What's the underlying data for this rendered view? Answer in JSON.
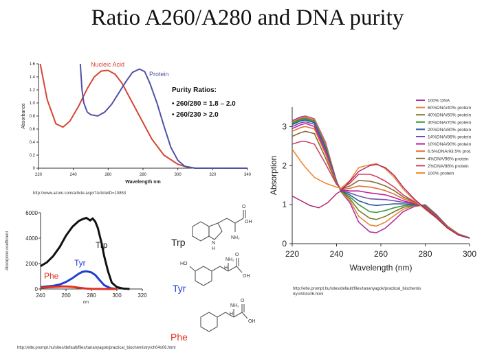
{
  "page": {
    "title": "Ratio A260/A280 and DNA purity"
  },
  "colors": {
    "nucleic": "#d64532",
    "protein": "#5151a8",
    "trp": "#111111",
    "tyr": "#1f3fd0",
    "phe": "#e03020",
    "purity_text": "#111111"
  },
  "chart_data": [
    {
      "id": "absorbance_spectra",
      "type": "line",
      "title": "",
      "xlabel": "Wavelength nm",
      "ylabel": "Absorbance",
      "xlim": [
        220,
        340
      ],
      "ylim": [
        0,
        1.6
      ],
      "xticks": [
        "220",
        "240",
        "260",
        "280",
        "300",
        "320",
        "340"
      ],
      "yticks": [
        "0",
        "0.2",
        "0.4",
        "0.6",
        "0.8",
        "1.0",
        "1.2",
        "1.4",
        "1.6"
      ],
      "series": [
        {
          "name": "Nucleic Acid",
          "color": "#d64532",
          "x": [
            221,
            225,
            230,
            234,
            238,
            243,
            248,
            252,
            256,
            260,
            264,
            268,
            272,
            278,
            285,
            292,
            300,
            305,
            310,
            340
          ],
          "y": [
            1.6,
            1.05,
            0.68,
            0.63,
            0.72,
            0.95,
            1.22,
            1.4,
            1.49,
            1.5,
            1.44,
            1.3,
            1.1,
            0.8,
            0.45,
            0.2,
            0.06,
            0.02,
            0,
            0
          ]
        },
        {
          "name": "Protein",
          "color": "#5151a8",
          "x": [
            244,
            245,
            246,
            248,
            250,
            254,
            258,
            262,
            266,
            270,
            274,
            278,
            281,
            284,
            288,
            292,
            296,
            300,
            304,
            310,
            340
          ],
          "y": [
            1.6,
            1.2,
            1.0,
            0.86,
            0.82,
            0.8,
            0.86,
            0.98,
            1.15,
            1.32,
            1.47,
            1.52,
            1.48,
            1.3,
            1.0,
            0.65,
            0.32,
            0.12,
            0.03,
            0,
            0
          ]
        }
      ],
      "annotations": {
        "heading": "Purity Ratios:",
        "lines": [
          "• 260/280 = 1.8 – 2.0",
          "• 260/230 > 2.0"
        ]
      },
      "source": "http://www.azom.com/article.aspx?ArticleID=10853"
    },
    {
      "id": "amino_acid_absorption",
      "type": "line",
      "title": "",
      "xlabel": "nm",
      "ylabel": "Absorption coefficient",
      "xlim": [
        240,
        320
      ],
      "ylim": [
        0,
        6000
      ],
      "xticks": [
        "240",
        "260",
        "280",
        "300",
        "320"
      ],
      "yticks": [
        "0",
        "2000",
        "4000",
        "6000"
      ],
      "series": [
        {
          "name": "Trp",
          "color": "#111111",
          "x": [
            240,
            245,
            250,
            255,
            260,
            265,
            270,
            273,
            276,
            279,
            281,
            283,
            285,
            288,
            290,
            293,
            296,
            300,
            305,
            310
          ],
          "y": [
            1800,
            2100,
            2600,
            3300,
            4200,
            4900,
            5350,
            5500,
            5600,
            5400,
            5550,
            5300,
            4800,
            3600,
            2600,
            1400,
            500,
            150,
            30,
            0
          ]
        },
        {
          "name": "Tyr",
          "color": "#1f3fd0",
          "x": [
            240,
            250,
            255,
            260,
            265,
            270,
            273,
            276,
            280,
            283,
            286,
            290,
            295,
            300
          ],
          "y": [
            150,
            250,
            350,
            550,
            850,
            1200,
            1350,
            1400,
            1300,
            1100,
            750,
            300,
            60,
            0
          ]
        },
        {
          "name": "Phe",
          "color": "#e03020",
          "x": [
            240,
            245,
            250,
            255,
            258,
            262,
            265,
            270,
            275,
            280,
            290,
            300
          ],
          "y": [
            100,
            130,
            160,
            190,
            200,
            190,
            170,
            100,
            40,
            10,
            0,
            0
          ]
        }
      ],
      "source": "http://elte.prompt.hu/sites/default/files/tananyagok/practical_biochemistry/ch04s06.html"
    },
    {
      "id": "dna_protein_mixtures",
      "type": "line",
      "title": "",
      "xlabel": "Wavelength (nm)",
      "ylabel": "Absorption",
      "xlim": [
        220,
        300
      ],
      "ylim": [
        0,
        3.5
      ],
      "xticks": [
        "220",
        "240",
        "260",
        "280",
        "300"
      ],
      "yticks": [
        "0",
        "1",
        "2",
        "3"
      ],
      "x": [
        220,
        224,
        226,
        230,
        235,
        240,
        242,
        246,
        250,
        255,
        258,
        262,
        266,
        270,
        275,
        280,
        285,
        290,
        295,
        300
      ],
      "series": [
        {
          "name": "100% DNA",
          "color": "#b0309f",
          "y": [
            3.15,
            3.25,
            3.27,
            3.2,
            2.6,
            1.6,
            1.33,
            1.05,
            0.55,
            0.3,
            0.28,
            0.4,
            0.6,
            0.82,
            0.95,
            1.0,
            0.75,
            0.45,
            0.25,
            0.15
          ]
        },
        {
          "name": "60%DNA/40% protein",
          "color": "#e08a3a",
          "y": [
            3.12,
            3.22,
            3.25,
            3.18,
            2.56,
            1.6,
            1.33,
            1.1,
            0.7,
            0.48,
            0.45,
            0.55,
            0.72,
            0.88,
            0.97,
            0.99,
            0.75,
            0.45,
            0.25,
            0.15
          ]
        },
        {
          "name": "40%DNA/60% protein",
          "color": "#7a7a2a",
          "y": [
            3.1,
            3.2,
            3.22,
            3.15,
            2.52,
            1.6,
            1.34,
            1.15,
            0.85,
            0.65,
            0.62,
            0.7,
            0.82,
            0.93,
            0.98,
            0.98,
            0.74,
            0.44,
            0.24,
            0.15
          ]
        },
        {
          "name": "30%DNA/70% protein",
          "color": "#3a9a3a",
          "y": [
            3.08,
            3.18,
            3.2,
            3.12,
            2.48,
            1.6,
            1.35,
            1.2,
            1.0,
            0.82,
            0.8,
            0.85,
            0.92,
            0.97,
            1.0,
            0.97,
            0.74,
            0.44,
            0.24,
            0.15
          ]
        },
        {
          "name": "20%DNA/80% protein",
          "color": "#2a5aa0",
          "y": [
            3.05,
            3.15,
            3.17,
            3.1,
            2.44,
            1.6,
            1.36,
            1.25,
            1.1,
            1.0,
            0.98,
            1.0,
            1.02,
            1.02,
            1.0,
            0.96,
            0.73,
            0.43,
            0.24,
            0.15
          ]
        },
        {
          "name": "14%DNA/86% protein",
          "color": "#7050b0",
          "y": [
            3.0,
            3.1,
            3.12,
            3.06,
            2.4,
            1.58,
            1.37,
            1.3,
            1.22,
            1.15,
            1.14,
            1.13,
            1.1,
            1.06,
            1.02,
            0.95,
            0.72,
            0.43,
            0.23,
            0.15
          ]
        },
        {
          "name": "10%DNA/90% protein",
          "color": "#c020a0",
          "y": [
            2.95,
            3.05,
            3.08,
            3.0,
            2.35,
            1.57,
            1.38,
            1.35,
            1.35,
            1.3,
            1.28,
            1.25,
            1.18,
            1.1,
            1.03,
            0.94,
            0.71,
            0.42,
            0.23,
            0.14
          ]
        },
        {
          "name": "6.5%DNA/93.5% prot.",
          "color": "#e07030",
          "y": [
            2.88,
            2.98,
            3.0,
            2.94,
            2.3,
            1.56,
            1.39,
            1.42,
            1.48,
            1.45,
            1.42,
            1.36,
            1.27,
            1.15,
            1.05,
            0.93,
            0.7,
            0.42,
            0.23,
            0.14
          ]
        },
        {
          "name": "4%DNA/96% protein",
          "color": "#8a6a30",
          "y": [
            2.75,
            2.85,
            2.88,
            2.82,
            2.2,
            1.55,
            1.4,
            1.48,
            1.62,
            1.6,
            1.56,
            1.48,
            1.36,
            1.2,
            1.07,
            0.92,
            0.69,
            0.41,
            0.22,
            0.14
          ]
        },
        {
          "name": "2%DNA/98% protein",
          "color": "#d04060",
          "y": [
            2.55,
            2.62,
            2.62,
            2.55,
            2.05,
            1.52,
            1.4,
            1.55,
            1.78,
            1.78,
            1.72,
            1.6,
            1.45,
            1.25,
            1.08,
            0.9,
            0.68,
            0.4,
            0.22,
            0.14
          ]
        },
        {
          "name": "100% protein",
          "color": "#f08a30",
          "y": [
            2.42,
            2.1,
            1.95,
            1.7,
            1.55,
            1.45,
            1.42,
            1.62,
            1.95,
            2.02,
            2.05,
            1.92,
            1.7,
            1.4,
            1.12,
            0.88,
            0.66,
            0.4,
            0.22,
            0.14
          ]
        }
      ],
      "extra_series": [
        {
          "name": "",
          "color": "#a8206e",
          "x": [
            220,
            224,
            228,
            232,
            236,
            240,
            242,
            246,
            250,
            255,
            258,
            262,
            266,
            270,
            275,
            280,
            285,
            290,
            295,
            300
          ],
          "y": [
            1.22,
            1.1,
            0.98,
            0.92,
            1.05,
            1.28,
            1.35,
            1.6,
            1.85,
            2.0,
            2.03,
            1.95,
            1.75,
            1.45,
            1.15,
            0.9,
            0.67,
            0.4,
            0.22,
            0.14
          ]
        }
      ],
      "source_lines": [
        "http://elte.prompt.hu/sites/default/files/tananyagok/practical_biochemis",
        "try/ch04s06.html"
      ]
    }
  ],
  "molecules": [
    {
      "name": "Trp",
      "color": "#222222",
      "labels": [
        "NH₂",
        "OH",
        "O",
        "N",
        "H"
      ]
    },
    {
      "name": "Tyr",
      "color": "#1f3fd0",
      "labels": [
        "HO",
        "NH₂",
        "OH",
        "O",
        "H"
      ]
    },
    {
      "name": "Phe",
      "color": "#e03020",
      "labels": [
        "NH₂",
        "OH",
        "O",
        "H"
      ]
    }
  ]
}
